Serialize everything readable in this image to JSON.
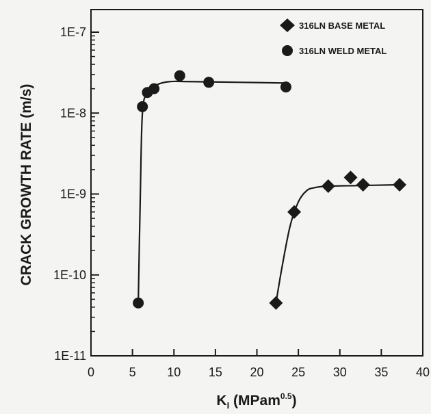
{
  "chart_data": {
    "type": "scatter",
    "xlabel": {
      "base": "K",
      "sub": "I",
      "rest": " (MPam",
      "sup": "0.5",
      "end": ")"
    },
    "ylabel": "CRACK GROWTH RATE (m/s)",
    "xlim": [
      0,
      40
    ],
    "ylim": [
      1e-11,
      2e-07
    ],
    "yscale": "log",
    "grid": false,
    "legend_position": "top-right",
    "x_ticks": [
      "0",
      "5",
      "10",
      "15",
      "20",
      "25",
      "30",
      "35",
      "40"
    ],
    "y_ticks": [
      "1E-11",
      "1E-10",
      "1E-9",
      "1E-8",
      "1E-7"
    ],
    "series": [
      {
        "name": "316LN BASE METAL",
        "marker": "diamond",
        "color": "#1a1a1a",
        "points": [
          [
            22.3,
            4.5e-11
          ],
          [
            24.5,
            6e-10
          ],
          [
            28.6,
            1.25e-09
          ],
          [
            31.3,
            1.6e-09
          ],
          [
            32.8,
            1.3e-09
          ],
          [
            37.2,
            1.3e-09
          ]
        ],
        "fit": [
          [
            22.3,
            4.5e-11
          ],
          [
            23.0,
            1.2e-10
          ],
          [
            24.0,
            4e-10
          ],
          [
            25.0,
            8e-10
          ],
          [
            26.0,
            1.1e-09
          ],
          [
            27.0,
            1.2e-09
          ],
          [
            28.5,
            1.25e-09
          ],
          [
            32.0,
            1.27e-09
          ],
          [
            37.2,
            1.3e-09
          ]
        ]
      },
      {
        "name": "316LN WELD METAL",
        "marker": "circle",
        "color": "#1a1a1a",
        "points": [
          [
            5.7,
            4.5e-11
          ],
          [
            6.2,
            1.2e-08
          ],
          [
            6.8,
            1.8e-08
          ],
          [
            7.6,
            2e-08
          ],
          [
            10.7,
            2.9e-08
          ],
          [
            14.2,
            2.4e-08
          ],
          [
            23.5,
            2.1e-08
          ]
        ],
        "fit": [
          [
            5.7,
            4.5e-11
          ],
          [
            5.95,
            1e-09
          ],
          [
            6.2,
            1e-08
          ],
          [
            6.8,
            1.8e-08
          ],
          [
            8.0,
            2.25e-08
          ],
          [
            9.5,
            2.45e-08
          ],
          [
            12.0,
            2.45e-08
          ],
          [
            18.0,
            2.4e-08
          ],
          [
            23.5,
            2.35e-08
          ]
        ]
      }
    ]
  }
}
